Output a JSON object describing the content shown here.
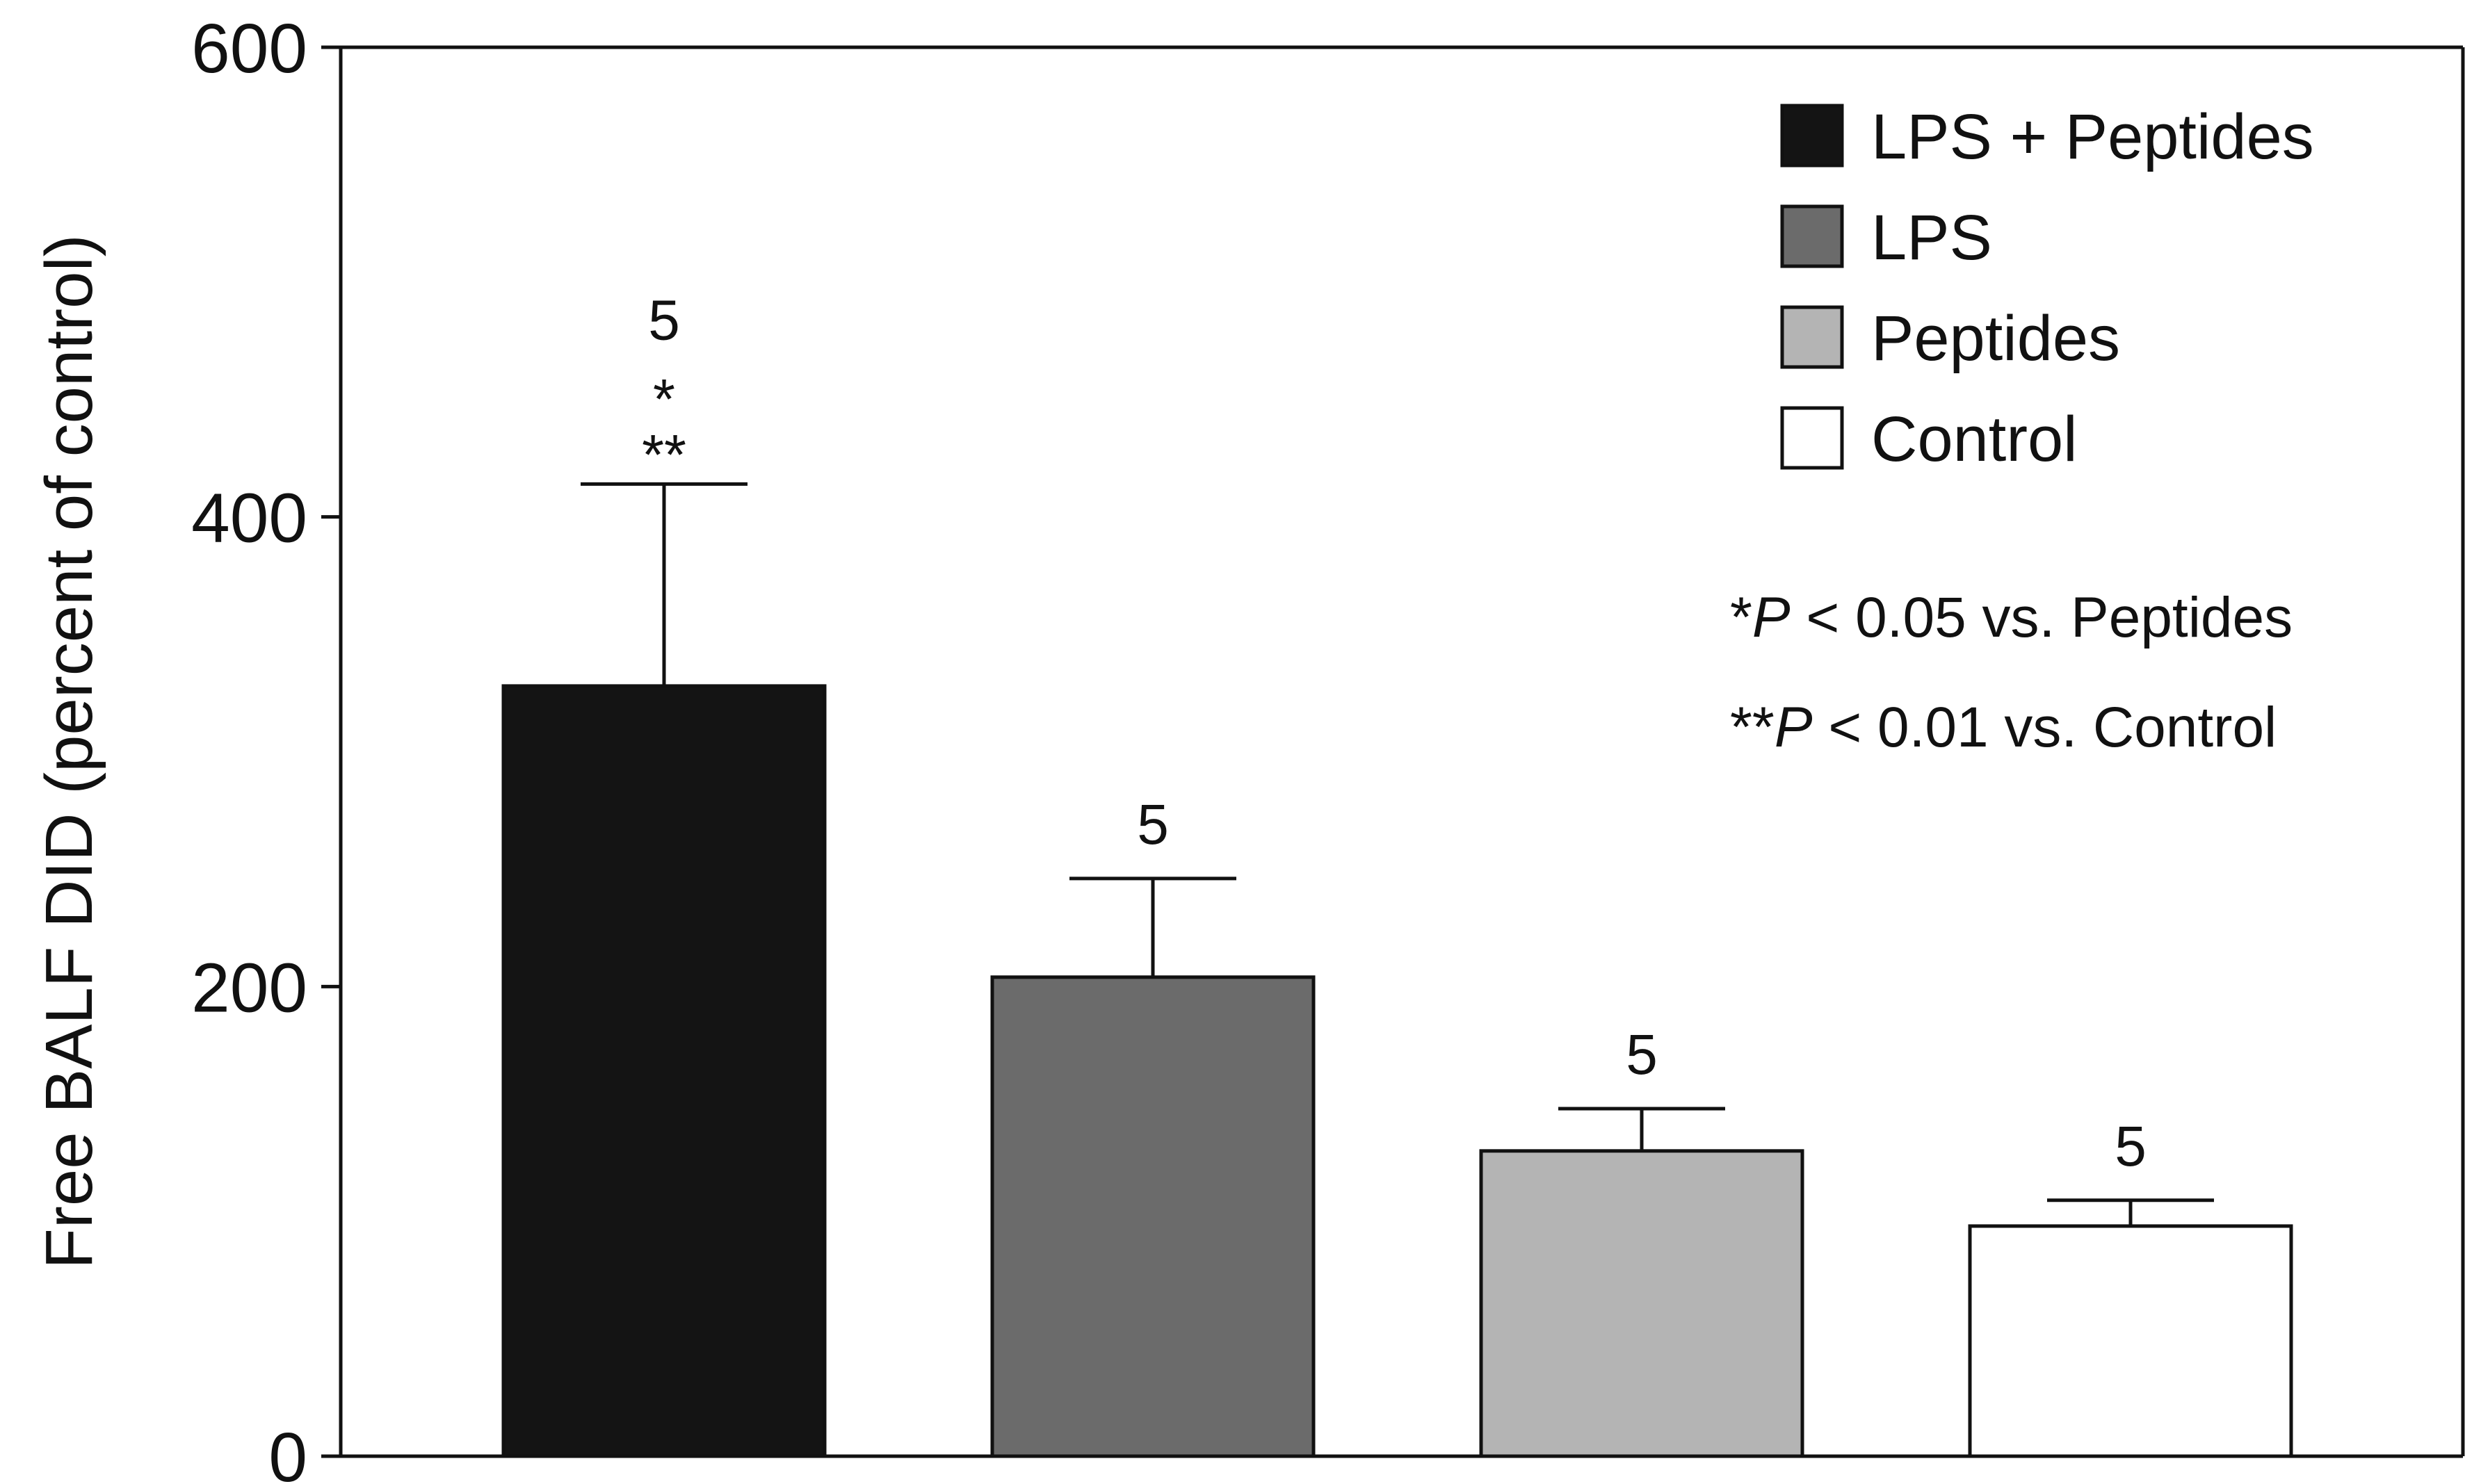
{
  "chart_data": {
    "type": "bar",
    "ylabel": "Free BALF DID (percent of control)",
    "ylim": [
      0,
      600
    ],
    "yticks": [
      0,
      200,
      400,
      600
    ],
    "categories": [
      "LPS + Peptides",
      "LPS",
      "Peptides",
      "Control"
    ],
    "values": [
      328,
      204,
      130,
      98
    ],
    "errors": [
      86,
      42,
      18,
      11
    ],
    "n_labels": [
      "5",
      "5",
      "5",
      "5"
    ],
    "significance": [
      [
        "*",
        "**"
      ],
      [],
      [],
      []
    ],
    "colors": [
      "#141414",
      "#6b6b6b",
      "#b4b4b4",
      "#ffffff"
    ],
    "legend": {
      "placement": "top-right",
      "order": [
        0,
        1,
        2,
        3
      ]
    },
    "annotations": [
      {
        "stars": "*",
        "p": "P",
        "text": " < 0.05 vs. Peptides"
      },
      {
        "stars": "**",
        "p": "P",
        "text": " < 0.01 vs. Control"
      }
    ],
    "grid": false
  }
}
